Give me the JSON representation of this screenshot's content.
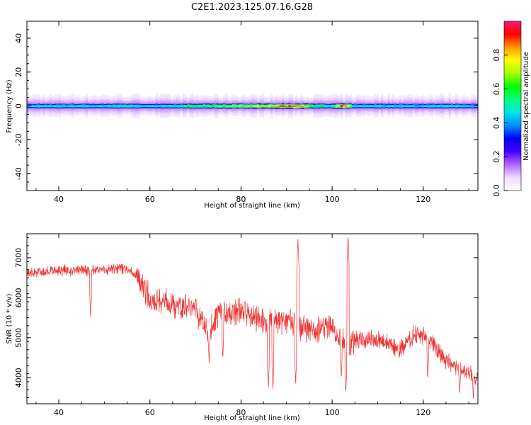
{
  "figure": {
    "title": "C2E1.2023.125.07.16.G28"
  },
  "colors": {
    "spectrum_stops": [
      "#ffffff",
      "#eddcff",
      "#b266ff",
      "#4400ff",
      "#0000ff",
      "#0090ff",
      "#00e6e6",
      "#00ff7a",
      "#00ff00",
      "#a6ff00",
      "#ffff00",
      "#ff9900",
      "#ff0000",
      "#ff1a6e"
    ],
    "snr_line": "#f03232"
  },
  "chart_data": [
    {
      "type": "heatmap",
      "xlabel": "Height of straight line (km)",
      "ylabel": "Frequency (Hz)",
      "xlim": [
        33,
        132
      ],
      "ylim": [
        -50,
        50
      ],
      "xticks": [
        40,
        60,
        80,
        100,
        120
      ],
      "yticks": [
        -40,
        -20,
        0,
        20,
        40
      ],
      "colorbar": {
        "label": "Normalized spectral amplitude",
        "range": [
          0,
          1
        ],
        "ticks": [
          0.0,
          0.2,
          0.4,
          0.6,
          0.8
        ]
      },
      "band": {
        "center_hz": 0,
        "core_half_width_hz": 1.5,
        "outer_half_width_hz": 6
      },
      "peak_amplitude_profile": [
        [
          33,
          0.48
        ],
        [
          36,
          0.52
        ],
        [
          40,
          0.5
        ],
        [
          45,
          0.52
        ],
        [
          50,
          0.48
        ],
        [
          54,
          0.58
        ],
        [
          58,
          0.5
        ],
        [
          62,
          0.52
        ],
        [
          67,
          0.58
        ],
        [
          72,
          0.62
        ],
        [
          76,
          0.66
        ],
        [
          80,
          0.72
        ],
        [
          84,
          0.76
        ],
        [
          86,
          0.82
        ],
        [
          88,
          0.9
        ],
        [
          91,
          0.95
        ],
        [
          93,
          0.92
        ],
        [
          96,
          0.62
        ],
        [
          100,
          0.55
        ],
        [
          102,
          0.93
        ],
        [
          103,
          0.9
        ],
        [
          105,
          0.48
        ],
        [
          110,
          0.52
        ],
        [
          120,
          0.48
        ],
        [
          126,
          0.52
        ],
        [
          132,
          0.5
        ]
      ]
    },
    {
      "type": "line",
      "xlabel": "Height of straight line (km)",
      "ylabel": "SNR (10 * v/v)",
      "xlim": [
        33,
        132
      ],
      "ylim": [
        3350,
        7600
      ],
      "xticks": [
        40,
        60,
        80,
        100,
        120
      ],
      "yticks": [
        4000,
        5000,
        6000,
        7000
      ],
      "series": [
        {
          "trend": [
            [
              33,
              6620
            ],
            [
              40,
              6680
            ],
            [
              50,
              6700
            ],
            [
              55,
              6750
            ],
            [
              57,
              6560
            ],
            [
              60,
              6020
            ],
            [
              65,
              5850
            ],
            [
              70,
              5700
            ],
            [
              73,
              5100
            ],
            [
              75,
              5600
            ],
            [
              80,
              5650
            ],
            [
              85,
              5400
            ],
            [
              90,
              5450
            ],
            [
              95,
              5150
            ],
            [
              100,
              5250
            ],
            [
              103,
              4800
            ],
            [
              105,
              4950
            ],
            [
              110,
              4950
            ],
            [
              115,
              4700
            ],
            [
              118,
              5100
            ],
            [
              120,
              5050
            ],
            [
              125,
              4450
            ],
            [
              128,
              4200
            ],
            [
              132,
              4050
            ]
          ],
          "spikes_up": [
            [
              92.5,
              7470
            ],
            [
              103.5,
              7570
            ]
          ],
          "spikes_down": [
            [
              47,
              5500
            ],
            [
              73,
              4350
            ],
            [
              76,
              4450
            ],
            [
              86,
              3750
            ],
            [
              87,
              3700
            ],
            [
              92,
              3850
            ],
            [
              102,
              3950
            ],
            [
              103,
              3600
            ],
            [
              121,
              3950
            ],
            [
              128,
              3550
            ],
            [
              131,
              3450
            ]
          ]
        }
      ]
    }
  ]
}
